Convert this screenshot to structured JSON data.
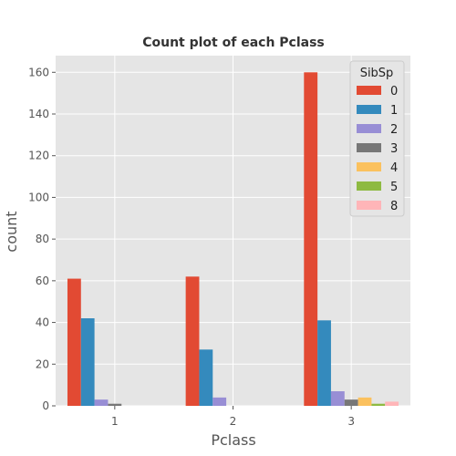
{
  "chart_data": {
    "type": "bar",
    "title": "Count plot of each Pclass",
    "xlabel": "Pclass",
    "ylabel": "count",
    "categories": [
      "1",
      "2",
      "3"
    ],
    "ylim": [
      0,
      168
    ],
    "yticks": [
      0,
      20,
      40,
      60,
      80,
      100,
      120,
      140,
      160
    ],
    "grid": true,
    "legend": {
      "title": "SibSp",
      "position": "top-right"
    },
    "series": [
      {
        "name": "0",
        "color": "#E24A33",
        "values": [
          61,
          62,
          160
        ]
      },
      {
        "name": "1",
        "color": "#348ABD",
        "values": [
          42,
          27,
          41
        ]
      },
      {
        "name": "2",
        "color": "#988ED5",
        "values": [
          3,
          4,
          7
        ]
      },
      {
        "name": "3",
        "color": "#777777",
        "values": [
          1,
          0,
          3
        ]
      },
      {
        "name": "4",
        "color": "#FBC15E",
        "values": [
          0,
          0,
          4
        ]
      },
      {
        "name": "5",
        "color": "#8EBA42",
        "values": [
          0,
          0,
          1
        ]
      },
      {
        "name": "8",
        "color": "#FFB5B8",
        "values": [
          0,
          0,
          2
        ]
      }
    ]
  }
}
